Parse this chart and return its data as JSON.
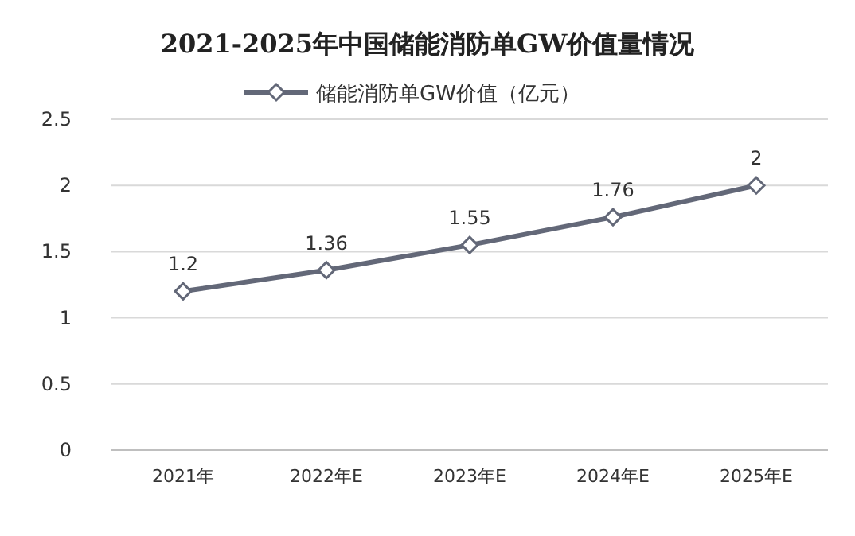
{
  "chart_data": {
    "type": "line",
    "title": "2021-2025年中国储能消防单GW价值量情况",
    "categories": [
      "2021年",
      "2022年E",
      "2023年E",
      "2024年E",
      "2025年E"
    ],
    "series": [
      {
        "name": "储能消防单GW价值（亿元）",
        "color": "#636878",
        "values": [
          1.2,
          1.36,
          1.55,
          1.76,
          2
        ]
      }
    ],
    "ylim": [
      0,
      2.5
    ],
    "yticks": [
      0,
      0.5,
      1,
      1.5,
      2,
      2.5
    ],
    "grid": "y",
    "legend": "top",
    "marker": "diamond",
    "line_style": "solid",
    "data_labels": true
  }
}
